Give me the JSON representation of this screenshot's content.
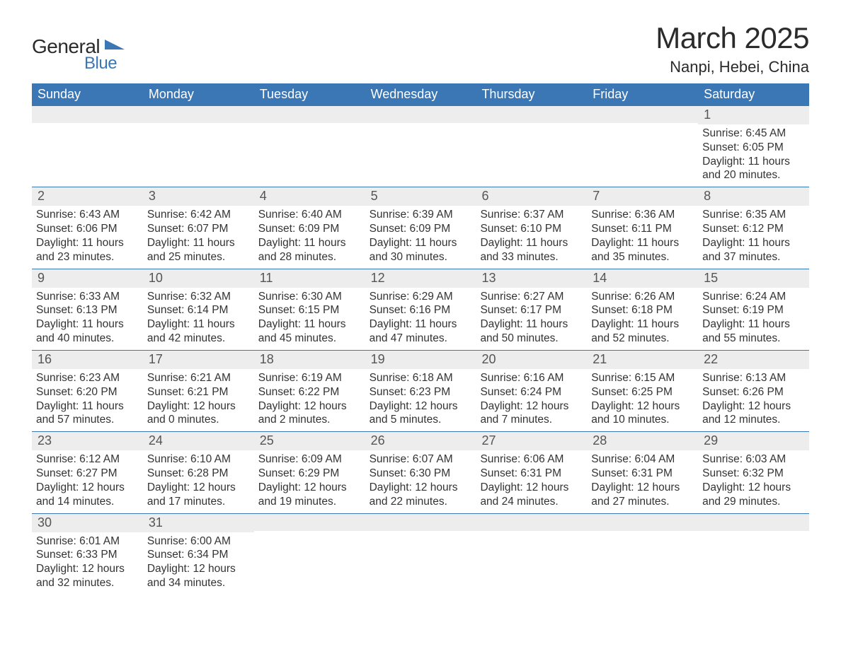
{
  "logo": {
    "main": "General",
    "sub": "Blue",
    "shape_color": "#3b76b5"
  },
  "title": "March 2025",
  "location": "Nanpi, Hebei, China",
  "colors": {
    "header_bg": "#3b76b5",
    "header_text": "#ffffff",
    "daynum_bg": "#ededed",
    "daynum_text": "#555555",
    "body_text": "#333333",
    "row_divider": "#3b76b5",
    "page_bg": "#ffffff"
  },
  "dow": [
    "Sunday",
    "Monday",
    "Tuesday",
    "Wednesday",
    "Thursday",
    "Friday",
    "Saturday"
  ],
  "weeks": [
    [
      {
        "n": "",
        "sr": "",
        "ss": "",
        "dl": ""
      },
      {
        "n": "",
        "sr": "",
        "ss": "",
        "dl": ""
      },
      {
        "n": "",
        "sr": "",
        "ss": "",
        "dl": ""
      },
      {
        "n": "",
        "sr": "",
        "ss": "",
        "dl": ""
      },
      {
        "n": "",
        "sr": "",
        "ss": "",
        "dl": ""
      },
      {
        "n": "",
        "sr": "",
        "ss": "",
        "dl": ""
      },
      {
        "n": "1",
        "sr": "Sunrise: 6:45 AM",
        "ss": "Sunset: 6:05 PM",
        "dl": "Daylight: 11 hours and 20 minutes."
      }
    ],
    [
      {
        "n": "2",
        "sr": "Sunrise: 6:43 AM",
        "ss": "Sunset: 6:06 PM",
        "dl": "Daylight: 11 hours and 23 minutes."
      },
      {
        "n": "3",
        "sr": "Sunrise: 6:42 AM",
        "ss": "Sunset: 6:07 PM",
        "dl": "Daylight: 11 hours and 25 minutes."
      },
      {
        "n": "4",
        "sr": "Sunrise: 6:40 AM",
        "ss": "Sunset: 6:09 PM",
        "dl": "Daylight: 11 hours and 28 minutes."
      },
      {
        "n": "5",
        "sr": "Sunrise: 6:39 AM",
        "ss": "Sunset: 6:09 PM",
        "dl": "Daylight: 11 hours and 30 minutes."
      },
      {
        "n": "6",
        "sr": "Sunrise: 6:37 AM",
        "ss": "Sunset: 6:10 PM",
        "dl": "Daylight: 11 hours and 33 minutes."
      },
      {
        "n": "7",
        "sr": "Sunrise: 6:36 AM",
        "ss": "Sunset: 6:11 PM",
        "dl": "Daylight: 11 hours and 35 minutes."
      },
      {
        "n": "8",
        "sr": "Sunrise: 6:35 AM",
        "ss": "Sunset: 6:12 PM",
        "dl": "Daylight: 11 hours and 37 minutes."
      }
    ],
    [
      {
        "n": "9",
        "sr": "Sunrise: 6:33 AM",
        "ss": "Sunset: 6:13 PM",
        "dl": "Daylight: 11 hours and 40 minutes."
      },
      {
        "n": "10",
        "sr": "Sunrise: 6:32 AM",
        "ss": "Sunset: 6:14 PM",
        "dl": "Daylight: 11 hours and 42 minutes."
      },
      {
        "n": "11",
        "sr": "Sunrise: 6:30 AM",
        "ss": "Sunset: 6:15 PM",
        "dl": "Daylight: 11 hours and 45 minutes."
      },
      {
        "n": "12",
        "sr": "Sunrise: 6:29 AM",
        "ss": "Sunset: 6:16 PM",
        "dl": "Daylight: 11 hours and 47 minutes."
      },
      {
        "n": "13",
        "sr": "Sunrise: 6:27 AM",
        "ss": "Sunset: 6:17 PM",
        "dl": "Daylight: 11 hours and 50 minutes."
      },
      {
        "n": "14",
        "sr": "Sunrise: 6:26 AM",
        "ss": "Sunset: 6:18 PM",
        "dl": "Daylight: 11 hours and 52 minutes."
      },
      {
        "n": "15",
        "sr": "Sunrise: 6:24 AM",
        "ss": "Sunset: 6:19 PM",
        "dl": "Daylight: 11 hours and 55 minutes."
      }
    ],
    [
      {
        "n": "16",
        "sr": "Sunrise: 6:23 AM",
        "ss": "Sunset: 6:20 PM",
        "dl": "Daylight: 11 hours and 57 minutes."
      },
      {
        "n": "17",
        "sr": "Sunrise: 6:21 AM",
        "ss": "Sunset: 6:21 PM",
        "dl": "Daylight: 12 hours and 0 minutes."
      },
      {
        "n": "18",
        "sr": "Sunrise: 6:19 AM",
        "ss": "Sunset: 6:22 PM",
        "dl": "Daylight: 12 hours and 2 minutes."
      },
      {
        "n": "19",
        "sr": "Sunrise: 6:18 AM",
        "ss": "Sunset: 6:23 PM",
        "dl": "Daylight: 12 hours and 5 minutes."
      },
      {
        "n": "20",
        "sr": "Sunrise: 6:16 AM",
        "ss": "Sunset: 6:24 PM",
        "dl": "Daylight: 12 hours and 7 minutes."
      },
      {
        "n": "21",
        "sr": "Sunrise: 6:15 AM",
        "ss": "Sunset: 6:25 PM",
        "dl": "Daylight: 12 hours and 10 minutes."
      },
      {
        "n": "22",
        "sr": "Sunrise: 6:13 AM",
        "ss": "Sunset: 6:26 PM",
        "dl": "Daylight: 12 hours and 12 minutes."
      }
    ],
    [
      {
        "n": "23",
        "sr": "Sunrise: 6:12 AM",
        "ss": "Sunset: 6:27 PM",
        "dl": "Daylight: 12 hours and 14 minutes."
      },
      {
        "n": "24",
        "sr": "Sunrise: 6:10 AM",
        "ss": "Sunset: 6:28 PM",
        "dl": "Daylight: 12 hours and 17 minutes."
      },
      {
        "n": "25",
        "sr": "Sunrise: 6:09 AM",
        "ss": "Sunset: 6:29 PM",
        "dl": "Daylight: 12 hours and 19 minutes."
      },
      {
        "n": "26",
        "sr": "Sunrise: 6:07 AM",
        "ss": "Sunset: 6:30 PM",
        "dl": "Daylight: 12 hours and 22 minutes."
      },
      {
        "n": "27",
        "sr": "Sunrise: 6:06 AM",
        "ss": "Sunset: 6:31 PM",
        "dl": "Daylight: 12 hours and 24 minutes."
      },
      {
        "n": "28",
        "sr": "Sunrise: 6:04 AM",
        "ss": "Sunset: 6:31 PM",
        "dl": "Daylight: 12 hours and 27 minutes."
      },
      {
        "n": "29",
        "sr": "Sunrise: 6:03 AM",
        "ss": "Sunset: 6:32 PM",
        "dl": "Daylight: 12 hours and 29 minutes."
      }
    ],
    [
      {
        "n": "30",
        "sr": "Sunrise: 6:01 AM",
        "ss": "Sunset: 6:33 PM",
        "dl": "Daylight: 12 hours and 32 minutes."
      },
      {
        "n": "31",
        "sr": "Sunrise: 6:00 AM",
        "ss": "Sunset: 6:34 PM",
        "dl": "Daylight: 12 hours and 34 minutes."
      },
      {
        "n": "",
        "sr": "",
        "ss": "",
        "dl": ""
      },
      {
        "n": "",
        "sr": "",
        "ss": "",
        "dl": ""
      },
      {
        "n": "",
        "sr": "",
        "ss": "",
        "dl": ""
      },
      {
        "n": "",
        "sr": "",
        "ss": "",
        "dl": ""
      },
      {
        "n": "",
        "sr": "",
        "ss": "",
        "dl": ""
      }
    ]
  ]
}
